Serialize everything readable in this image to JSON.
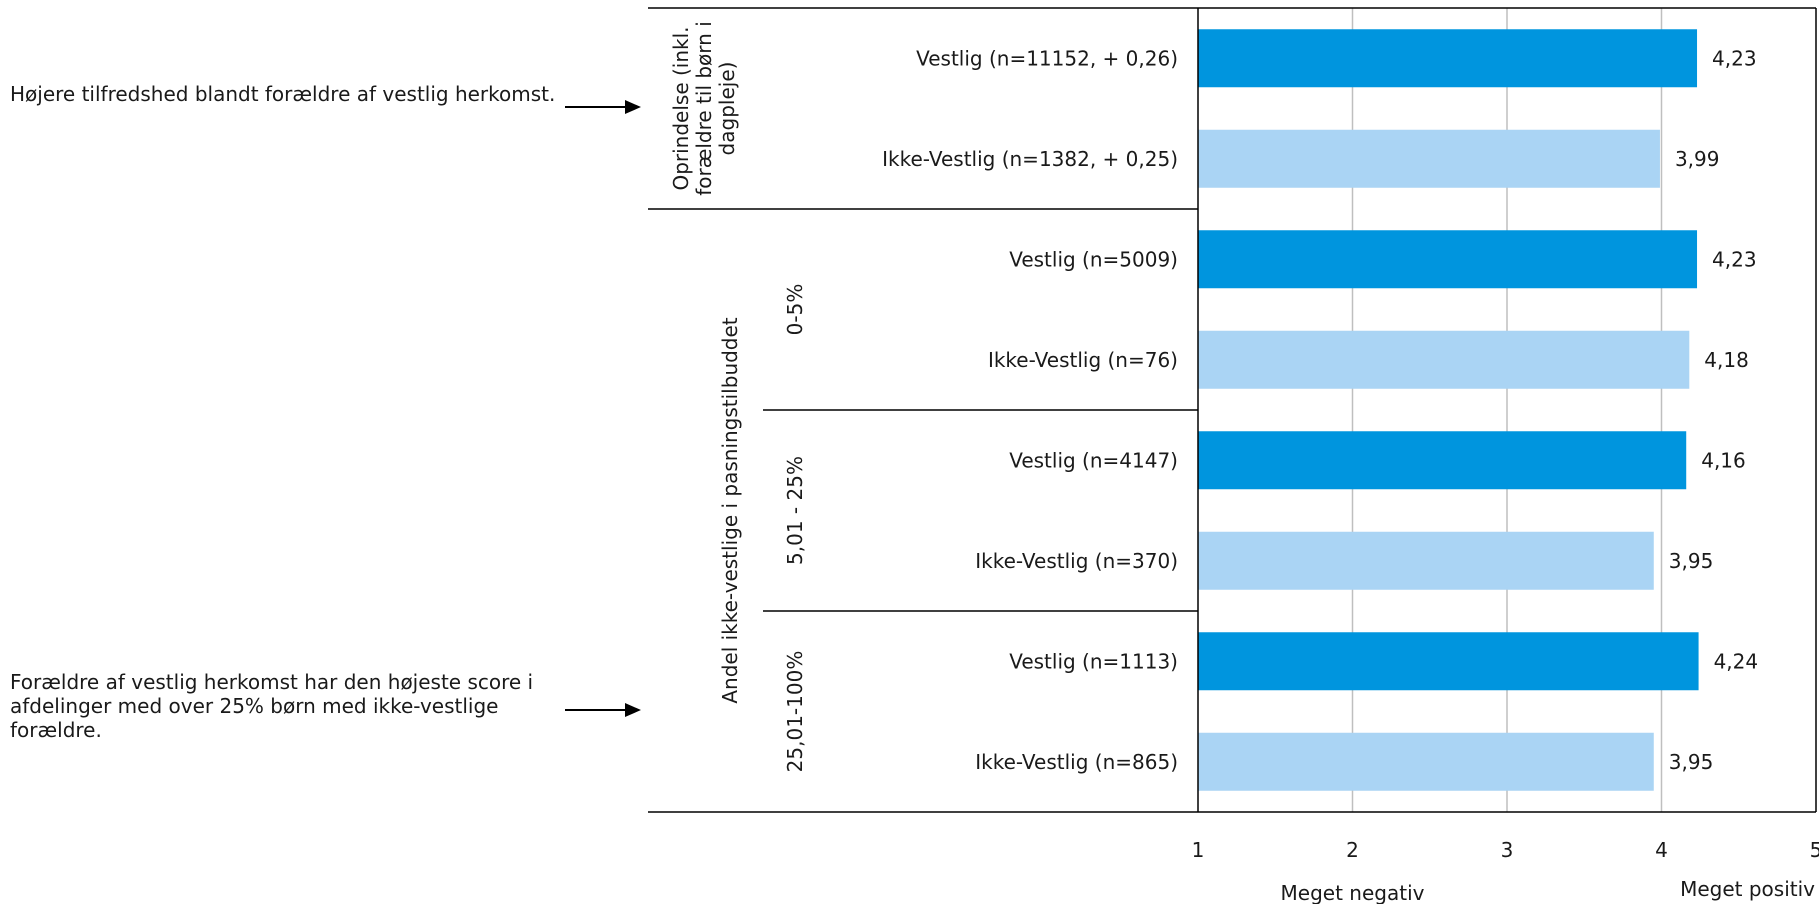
{
  "annotations": [
    "Højere tilfredshed blandt forældre af vestlig herkomst.",
    "Forældre af vestlig herkomst har den højeste score i afdelinger med over 25% børn med ikke-vestlige forældre."
  ],
  "colors": {
    "vestlig": "#0095de",
    "ikke_vestlig": "#aad4f4",
    "grid": "#bfbfbf",
    "axis": "#000000"
  },
  "chart_data": {
    "type": "bar",
    "orientation": "horizontal",
    "groups": [
      {
        "label": "Oprindelse (inkl. forældre til børn i dagpleje)",
        "lines": [
          "Oprindelse (inkl.",
          "forældre til børn i",
          "dagpleje)"
        ]
      },
      {
        "label": "Andel ikke-vestlige i pasningstilbuddet",
        "subgroups": [
          "0-5%",
          "5,01 - 25%",
          "25,01-100%"
        ]
      }
    ],
    "categories": [
      "Vestlig (n=11152, + 0,26)",
      "Ikke-Vestlig (n=1382, + 0,25)",
      "Vestlig (n=5009)",
      "Ikke-Vestlig (n=76)",
      "Vestlig (n=4147)",
      "Ikke-Vestlig (n=370)",
      "Vestlig (n=1113)",
      "Ikke-Vestlig (n=865)"
    ],
    "values": [
      4.23,
      3.99,
      4.23,
      4.18,
      4.16,
      3.95,
      4.24,
      3.95
    ],
    "value_labels": [
      "4,23",
      "3,99",
      "4,23",
      "4,18",
      "4,16",
      "3,95",
      "4,24",
      "3,95"
    ],
    "series_kind": [
      "vestlig",
      "ikke_vestlig",
      "vestlig",
      "ikke_vestlig",
      "vestlig",
      "ikke_vestlig",
      "vestlig",
      "ikke_vestlig"
    ],
    "xlim": [
      1,
      5
    ],
    "xticks": [
      "1",
      "2",
      "3",
      "4",
      "5"
    ],
    "xaxis_end_labels": {
      "low": "Meget negativ",
      "high": "Meget positiv"
    },
    "grid": "vertical"
  }
}
